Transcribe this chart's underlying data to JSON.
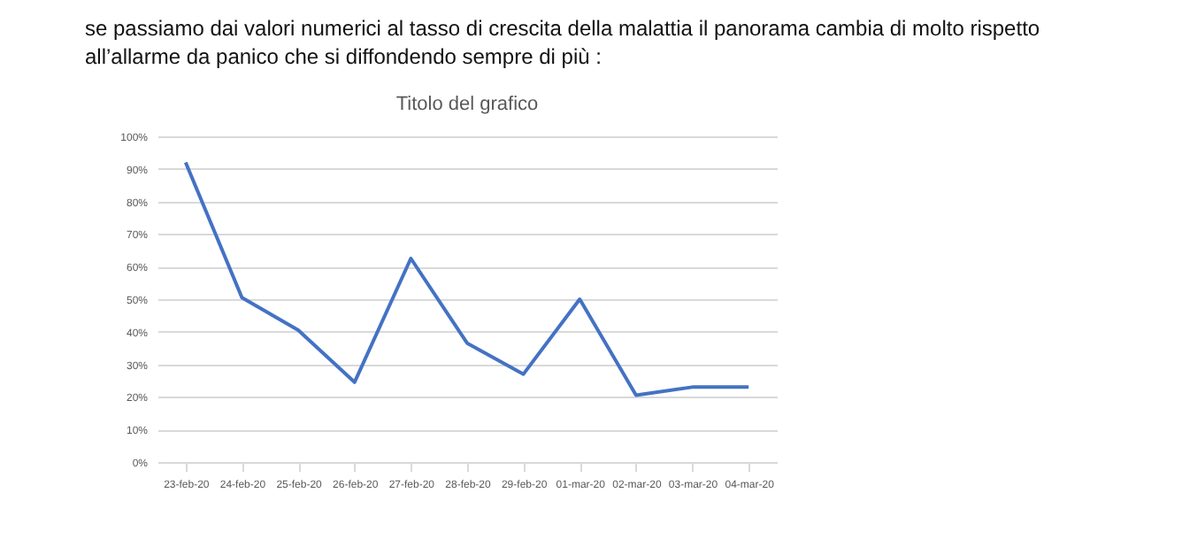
{
  "chart_data": {
    "type": "line",
    "title": "Titolo del grafico",
    "annotations": [
      "se passiamo dai valori numerici al tasso di crescita della malattia il panorama cambia di molto rispetto all’allarme da panico che si diffondendo sempre di più :"
    ],
    "categories": [
      "23-feb-20",
      "24-feb-20",
      "25-feb-20",
      "26-feb-20",
      "27-feb-20",
      "28-feb-20",
      "29-feb-20",
      "01-mar-20",
      "02-mar-20",
      "03-mar-20",
      "04-mar-20"
    ],
    "series": [
      {
        "color": "#4472c4",
        "values": [
          92,
          50.5,
          40.5,
          24.5,
          62.5,
          36.5,
          27,
          50,
          20.5,
          23,
          23
        ]
      }
    ],
    "ylim": [
      0,
      100
    ],
    "yticks": [
      {
        "value": 0,
        "label": "0%"
      },
      {
        "value": 10,
        "label": "10%"
      },
      {
        "value": 20,
        "label": "20%"
      },
      {
        "value": 30,
        "label": "30%"
      },
      {
        "value": 40,
        "label": "40%"
      },
      {
        "value": 50,
        "label": "50%"
      },
      {
        "value": 60,
        "label": "60%"
      },
      {
        "value": 70,
        "label": "70%"
      },
      {
        "value": 80,
        "label": "80%"
      },
      {
        "value": 90,
        "label": "90%"
      },
      {
        "value": 100,
        "label": "100%"
      }
    ],
    "grid": "y",
    "legend": false,
    "marker": "none",
    "line_style": "solid"
  }
}
